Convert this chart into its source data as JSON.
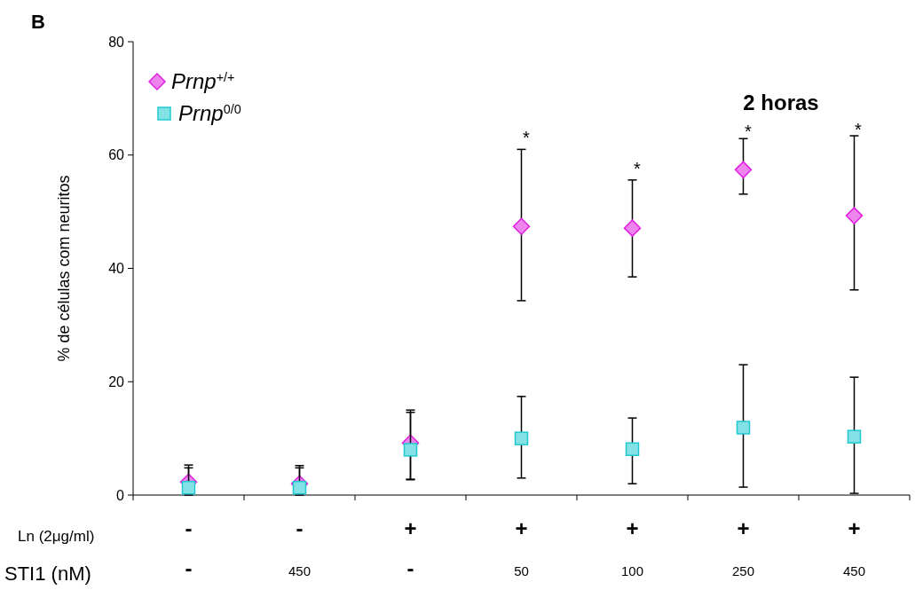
{
  "chart_data": {
    "type": "scatter",
    "ylabel": "% de células com neuritos",
    "categories": [
      "-\n-",
      "-\n450",
      "+\n-",
      "+\n50",
      "+\n100",
      "+\n250",
      "+\n450"
    ],
    "ylim": [
      0,
      80
    ],
    "yticks": [
      0,
      20,
      40,
      60,
      80
    ],
    "grid": false,
    "legend": "top left",
    "series": [
      {
        "name": "Prnp$^{+/+}$",
        "color": "#e020e0",
        "marker": "diamond",
        "values": [
          2.3,
          2,
          9.2,
          47.4,
          47.1,
          57.4,
          49.3
        ],
        "errors": [
          [
            0,
            5.3
          ],
          [
            0,
            5.2
          ],
          [
            2.7,
            15
          ],
          [
            34.3,
            61
          ],
          [
            38.5,
            55.6
          ],
          [
            53.1,
            62.9
          ],
          [
            36.2,
            63.4
          ]
        ]
      },
      {
        "name": "Prnp$^{0/0}$",
        "color": "#20c8d0",
        "marker": "square",
        "values": [
          1.3,
          1.3,
          8,
          10,
          8.1,
          11.9,
          10.3
        ],
        "errors": [
          [
            0.5,
            4.8
          ],
          [
            0.5,
            4.8
          ],
          [
            2.8,
            14.6
          ],
          [
            3,
            17.4
          ],
          [
            2,
            13.6
          ],
          [
            1.4,
            23
          ],
          [
            0.3,
            20.8
          ]
        ]
      }
    ],
    "annotations": [
      "B",
      "2 horas",
      "Ln (2μg/ml)",
      "STI1 (nM)",
      "*",
      "*",
      "*",
      "*"
    ]
  }
}
